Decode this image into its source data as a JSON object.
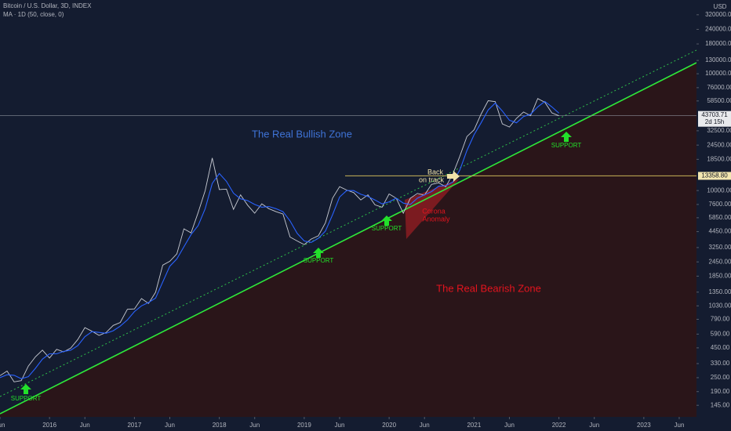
{
  "chart_data": {
    "type": "line",
    "log_scale": true,
    "series": [
      {
        "name": "Bitcoin / U.S. Dollar, 3D, INDEX",
        "color": "#c8cbd3",
        "values": [
          260,
          285,
          230,
          236,
          314,
          377,
          430,
          368,
          437,
          416,
          448,
          531,
          670,
          624,
          575,
          609,
          700,
          742,
          963,
          970,
          1190,
          1080,
          1348,
          2300,
          2480,
          2875,
          4700,
          4340,
          6470,
          10000,
          19000,
          10200,
          10300,
          6900,
          9200,
          7500,
          6400,
          7700,
          7000,
          6600,
          6300,
          4000,
          3700,
          3450,
          3850,
          4100,
          5300,
          8600,
          10800,
          10100,
          9600,
          8300,
          9200,
          7550,
          7200,
          9350,
          8600,
          6400,
          8600,
          9450,
          9140,
          11300,
          11650,
          10780,
          13800,
          19700,
          29000,
          33100,
          45200,
          58800,
          57700,
          37300,
          35000,
          41500,
          47100,
          43800,
          61300,
          57000,
          46300,
          43700
        ]
      },
      {
        "name": "MA · 1D (50, close, 0)",
        "color": "#2962ff",
        "values": [
          250,
          265,
          262,
          245,
          255,
          300,
          360,
          400,
          400,
          420,
          430,
          470,
          560,
          620,
          610,
          600,
          630,
          690,
          780,
          920,
          1030,
          1100,
          1200,
          1650,
          2250,
          2600,
          3300,
          4200,
          5000,
          7000,
          11500,
          14000,
          12000,
          9500,
          8500,
          8200,
          7600,
          7200,
          7300,
          7000,
          6600,
          5500,
          4300,
          3700,
          3600,
          3900,
          4500,
          6200,
          8800,
          10000,
          10000,
          9300,
          8900,
          8300,
          7700,
          8000,
          8600,
          7800,
          7600,
          8600,
          9200,
          9800,
          10900,
          11000,
          11800,
          15000,
          22000,
          30000,
          38000,
          49000,
          56000,
          48000,
          40000,
          38000,
          43000,
          45000,
          52000,
          58000,
          52000,
          46000
        ]
      }
    ],
    "x": [
      "2015-06",
      "2015-07",
      "2015-08",
      "2015-09",
      "2015-10",
      "2015-11",
      "2015-12",
      "2016-01",
      "2016-02",
      "2016-03",
      "2016-04",
      "2016-05",
      "2016-06",
      "2016-07",
      "2016-08",
      "2016-09",
      "2016-10",
      "2016-11",
      "2016-12",
      "2017-01",
      "2017-02",
      "2017-03",
      "2017-04",
      "2017-05",
      "2017-06",
      "2017-07",
      "2017-08",
      "2017-09",
      "2017-10",
      "2017-11",
      "2017-12",
      "2018-01",
      "2018-02",
      "2018-03",
      "2018-04",
      "2018-05",
      "2018-06",
      "2018-07",
      "2018-08",
      "2018-09",
      "2018-10",
      "2018-11",
      "2018-12",
      "2019-01",
      "2019-02",
      "2019-03",
      "2019-04",
      "2019-05",
      "2019-06",
      "2019-07",
      "2019-08",
      "2019-09",
      "2019-10",
      "2019-11",
      "2019-12",
      "2020-01",
      "2020-02",
      "2020-03",
      "2020-04",
      "2020-05",
      "2020-06",
      "2020-07",
      "2020-08",
      "2020-09",
      "2020-10",
      "2020-11",
      "2020-12",
      "2021-01",
      "2021-02",
      "2021-03",
      "2021-04",
      "2021-05",
      "2021-06",
      "2021-07",
      "2021-08",
      "2021-09",
      "2021-10",
      "2021-11",
      "2021-12",
      "2022-01"
    ],
    "xlim": [
      "2015-06",
      "2023-08"
    ],
    "xticks": [
      {
        "value": "2015-06",
        "label": "Jun"
      },
      {
        "value": "2016-01",
        "label": "2016"
      },
      {
        "value": "2016-06",
        "label": "Jun"
      },
      {
        "value": "2017-01",
        "label": "2017"
      },
      {
        "value": "2017-06",
        "label": "Jun"
      },
      {
        "value": "2018-01",
        "label": "2018"
      },
      {
        "value": "2018-06",
        "label": "Jun"
      },
      {
        "value": "2019-01",
        "label": "2019"
      },
      {
        "value": "2019-06",
        "label": "Jun"
      },
      {
        "value": "2020-01",
        "label": "2020"
      },
      {
        "value": "2020-06",
        "label": "Jun"
      },
      {
        "value": "2021-01",
        "label": "2021"
      },
      {
        "value": "2021-06",
        "label": "Jun"
      },
      {
        "value": "2022-01",
        "label": "2022"
      },
      {
        "value": "2022-06",
        "label": "Jun"
      },
      {
        "value": "2023-01",
        "label": "2023"
      },
      {
        "value": "2023-06",
        "label": "Jun"
      }
    ],
    "ylim": [
      119,
      428000
    ],
    "yticks": [
      {
        "value": 320000,
        "label": "320000.00"
      },
      {
        "value": 240000,
        "label": "240000.00"
      },
      {
        "value": 180000,
        "label": "180000.00"
      },
      {
        "value": 130000,
        "label": "130000.00"
      },
      {
        "value": 100000,
        "label": "100000.00"
      },
      {
        "value": 76000,
        "label": "76000.00"
      },
      {
        "value": 58500,
        "label": "58500.00"
      },
      {
        "value": 32500,
        "label": "32500.00"
      },
      {
        "value": 24500,
        "label": "24500.00"
      },
      {
        "value": 18500,
        "label": "18500.00"
      },
      {
        "value": 10000,
        "label": "10000.00"
      },
      {
        "value": 7600,
        "label": "7600.00"
      },
      {
        "value": 5850,
        "label": "5850.00"
      },
      {
        "value": 4450,
        "label": "4450.00"
      },
      {
        "value": 3250,
        "label": "3250.00"
      },
      {
        "value": 2450,
        "label": "2450.00"
      },
      {
        "value": 1850,
        "label": "1850.00"
      },
      {
        "value": 1350,
        "label": "1350.00"
      },
      {
        "value": 1030,
        "label": "1030.00"
      },
      {
        "value": 790,
        "label": "790.00"
      },
      {
        "value": 590,
        "label": "590.00"
      },
      {
        "value": 450,
        "label": "450.00"
      },
      {
        "value": 330,
        "label": "330.00"
      },
      {
        "value": 250,
        "label": "250.00"
      },
      {
        "value": 190,
        "label": "190.00"
      },
      {
        "value": 145,
        "label": "145.00"
      }
    ],
    "y_unit": "USD",
    "last_price": 43703.71,
    "countdown": "2d 15h",
    "level": {
      "value": 13358.8,
      "label": "13358.80"
    },
    "annotations": [
      "The Real Bullish Zone",
      "The Real Bearish Zone",
      "SUPPORT",
      "SUPPORT",
      "SUPPORT",
      "SUPPORT",
      "Back",
      "on track",
      "Corona",
      "Anomaly"
    ]
  }
}
